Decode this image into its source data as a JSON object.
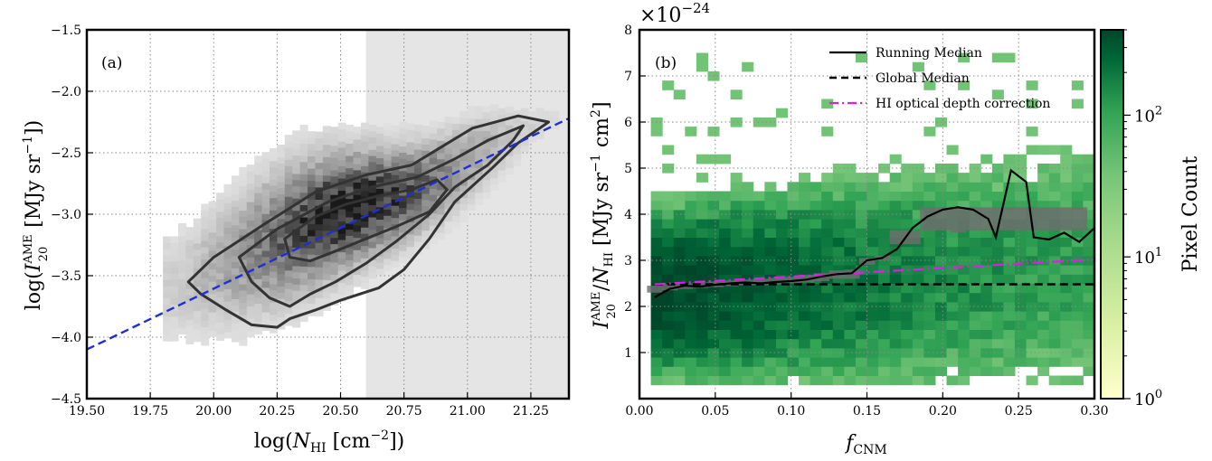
{
  "chart_data": [
    {
      "panel": "(a)",
      "type": "scatter",
      "subtype": "2d-histogram-with-contours",
      "xlabel": "log(N_HI [cm^-2])",
      "ylabel": "log(I_20^AME [MJy sr^-1])",
      "xlim": [
        19.5,
        21.4
      ],
      "ylim": [
        -4.5,
        -1.5
      ],
      "xticks": [
        "19.50",
        "19.75",
        "20.00",
        "20.25",
        "20.50",
        "20.75",
        "21.00",
        "21.25"
      ],
      "yticks": [
        "-1.5",
        "-2.0",
        "-2.5",
        "-3.0",
        "-3.5",
        "-4.0",
        "-4.5"
      ],
      "grid": true,
      "shaded_region": {
        "x_from": 20.6,
        "x_to": 21.4,
        "color": "#e5e5e5"
      },
      "fit_line": {
        "points": [
          [
            19.5,
            -4.1
          ],
          [
            21.4,
            -2.22
          ]
        ],
        "color": "#1f2fd6",
        "style": "dashed"
      },
      "ridge": {
        "x": [
          19.85,
          20.0,
          20.15,
          20.3,
          20.45,
          20.6,
          20.75,
          20.9,
          21.05,
          21.2,
          21.3
        ],
        "y": [
          -3.6,
          -3.45,
          -3.3,
          -3.15,
          -3.02,
          -2.93,
          -2.85,
          -2.7,
          -2.52,
          -2.35,
          -2.25
        ],
        "width_dex": [
          0.3,
          0.32,
          0.34,
          0.34,
          0.3,
          0.27,
          0.24,
          0.22,
          0.2,
          0.14,
          0.08
        ],
        "weight": [
          0.15,
          0.3,
          0.5,
          0.75,
          1.0,
          0.95,
          0.75,
          0.5,
          0.3,
          0.15,
          0.08
        ]
      },
      "contours": [
        {
          "level": "outer",
          "points": [
            [
              19.9,
              -3.55
            ],
            [
              20.0,
              -3.35
            ],
            [
              20.2,
              -3.08
            ],
            [
              20.4,
              -2.82
            ],
            [
              20.6,
              -2.68
            ],
            [
              20.78,
              -2.6
            ],
            [
              20.9,
              -2.45
            ],
            [
              21.02,
              -2.3
            ],
            [
              21.2,
              -2.2
            ],
            [
              21.32,
              -2.25
            ],
            [
              21.2,
              -2.42
            ],
            [
              21.1,
              -2.62
            ],
            [
              20.95,
              -2.9
            ],
            [
              20.85,
              -3.2
            ],
            [
              20.75,
              -3.45
            ],
            [
              20.65,
              -3.6
            ],
            [
              20.5,
              -3.7
            ],
            [
              20.4,
              -3.78
            ],
            [
              20.3,
              -3.85
            ],
            [
              20.25,
              -3.92
            ],
            [
              20.15,
              -3.9
            ],
            [
              20.05,
              -3.78
            ],
            [
              19.95,
              -3.65
            ]
          ]
        },
        {
          "level": "middle",
          "points": [
            [
              20.1,
              -3.35
            ],
            [
              20.25,
              -3.12
            ],
            [
              20.45,
              -2.9
            ],
            [
              20.62,
              -2.78
            ],
            [
              20.8,
              -2.7
            ],
            [
              20.95,
              -2.55
            ],
            [
              21.08,
              -2.4
            ],
            [
              21.22,
              -2.28
            ],
            [
              21.18,
              -2.4
            ],
            [
              21.08,
              -2.6
            ],
            [
              20.95,
              -2.78
            ],
            [
              20.85,
              -3.0
            ],
            [
              20.72,
              -3.22
            ],
            [
              20.6,
              -3.4
            ],
            [
              20.48,
              -3.55
            ],
            [
              20.38,
              -3.65
            ],
            [
              20.3,
              -3.75
            ],
            [
              20.22,
              -3.68
            ],
            [
              20.15,
              -3.55
            ]
          ]
        },
        {
          "level": "inner",
          "points": [
            [
              20.28,
              -3.2
            ],
            [
              20.4,
              -3.02
            ],
            [
              20.52,
              -2.92
            ],
            [
              20.65,
              -2.85
            ],
            [
              20.78,
              -2.8
            ],
            [
              20.88,
              -2.72
            ],
            [
              20.92,
              -2.8
            ],
            [
              20.85,
              -2.98
            ],
            [
              20.72,
              -3.1
            ],
            [
              20.6,
              -3.2
            ],
            [
              20.48,
              -3.3
            ],
            [
              20.38,
              -3.38
            ],
            [
              20.3,
              -3.35
            ]
          ]
        }
      ]
    },
    {
      "panel": "(b)",
      "type": "heatmap",
      "xlabel": "f_CNM",
      "ylabel": "I_20^AME / N_HI [MJy sr^-1 cm^2]",
      "y_scale_label": "×10^-24",
      "xlim": [
        0.0,
        0.3
      ],
      "ylim": [
        0,
        8
      ],
      "xticks": [
        "0.00",
        "0.05",
        "0.10",
        "0.15",
        "0.20",
        "0.25",
        "0.30"
      ],
      "yticks": [
        "1",
        "2",
        "3",
        "4",
        "5",
        "6",
        "7",
        "8"
      ],
      "grid": true,
      "colorbar": {
        "label": "Pixel Count",
        "scale": "log",
        "min": 1,
        "max": 400,
        "ticks": [
          "10^0",
          "10^1",
          "10^2"
        ],
        "colors": [
          "#ffffcc",
          "#d9f0a3",
          "#addd8e",
          "#78c679",
          "#31a354",
          "#006837",
          "#00452a"
        ]
      },
      "density": {
        "center_a": 2.2,
        "center_b": 0.55,
        "spread_a": 0.8,
        "spread_b": 3.0,
        "decay": 0.09
      },
      "legend": {
        "position": "top-right",
        "entries": [
          "Running Median",
          "Global Median",
          "HI optical depth correction"
        ]
      },
      "series": [
        {
          "name": "Running Median",
          "style": "solid",
          "color": "#000000",
          "x": [
            0.01,
            0.02,
            0.03,
            0.04,
            0.05,
            0.06,
            0.07,
            0.08,
            0.09,
            0.1,
            0.11,
            0.12,
            0.13,
            0.14,
            0.15,
            0.16,
            0.17,
            0.18,
            0.19,
            0.2,
            0.21,
            0.22,
            0.23,
            0.235,
            0.245,
            0.255,
            0.26,
            0.27,
            0.28,
            0.29,
            0.3
          ],
          "y": [
            2.2,
            2.38,
            2.45,
            2.43,
            2.47,
            2.5,
            2.52,
            2.5,
            2.53,
            2.55,
            2.58,
            2.65,
            2.7,
            2.72,
            3.0,
            3.05,
            3.25,
            3.7,
            3.95,
            4.1,
            4.15,
            4.1,
            3.9,
            3.5,
            4.95,
            4.7,
            3.5,
            3.45,
            3.6,
            3.4,
            3.7
          ]
        },
        {
          "name": "Global Median",
          "style": "dashed",
          "color": "#000000",
          "x": [
            0.01,
            0.3
          ],
          "y": [
            2.48,
            2.48
          ]
        },
        {
          "name": "HI optical depth correction",
          "style": "dashdot",
          "color": "#e619e6",
          "x": [
            0.01,
            0.3
          ],
          "y": [
            2.48,
            3.02
          ]
        }
      ],
      "error_band": {
        "color": "#6e6e6e",
        "x": [
          0.01,
          0.02,
          0.03,
          0.04,
          0.05,
          0.06,
          0.07,
          0.08,
          0.09,
          0.1,
          0.11,
          0.12,
          0.13,
          0.14,
          0.15,
          0.16,
          0.17,
          0.18,
          0.19,
          0.2,
          0.21,
          0.22,
          0.23,
          0.24,
          0.25,
          0.26,
          0.27,
          0.28,
          0.29
        ],
        "lo": [
          2.3,
          2.35,
          2.38,
          2.4,
          2.42,
          2.44,
          2.46,
          2.46,
          2.48,
          2.5,
          2.52,
          2.55,
          2.6,
          2.6,
          2.9,
          3.0,
          3.35,
          3.35,
          3.65,
          3.65,
          3.6,
          3.65,
          3.65,
          3.65,
          3.65,
          3.65,
          3.65,
          3.65,
          3.65
        ],
        "hi": [
          2.45,
          2.48,
          2.5,
          2.52,
          2.54,
          2.56,
          2.58,
          2.6,
          2.62,
          2.64,
          2.68,
          2.72,
          2.78,
          2.8,
          3.05,
          3.1,
          3.65,
          3.65,
          4.15,
          4.15,
          4.15,
          4.15,
          4.15,
          4.15,
          4.15,
          4.15,
          4.15,
          4.15,
          4.15
        ]
      }
    }
  ]
}
